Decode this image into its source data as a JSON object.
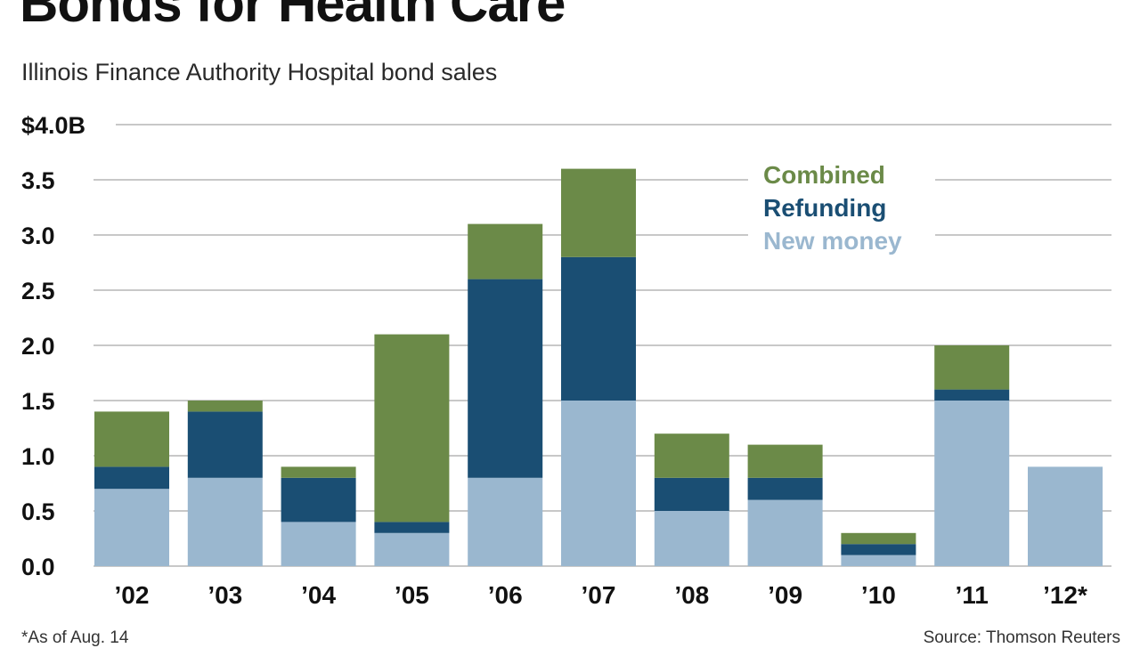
{
  "title": "Bonds for Health Care",
  "subtitle": "Illinois Finance Authority Hospital bond sales",
  "footnote": "*As of Aug. 14",
  "source": "Source: Thomson Reuters",
  "colors": {
    "combined": "#6b8a48",
    "refunding": "#1a4e73",
    "new_money": "#9ab7cf",
    "grid": "#c8c8c8"
  },
  "chart_data": {
    "type": "bar",
    "stacked": true,
    "title": "Bonds for Health Care",
    "subtitle": "Illinois Finance Authority Hospital bond sales",
    "xlabel": "",
    "ylabel": "",
    "ylim": [
      0,
      4.0
    ],
    "yticks": [
      0.0,
      0.5,
      1.0,
      1.5,
      2.0,
      2.5,
      3.0,
      3.5,
      4.0
    ],
    "ytick_labels": [
      "0.0",
      "0.5",
      "1.0",
      "1.5",
      "2.0",
      "2.5",
      "3.0",
      "3.5",
      "$4.0B"
    ],
    "grid": true,
    "legend_position": "top-right",
    "categories": [
      "'02",
      "'03",
      "'04",
      "'05",
      "'06",
      "'07",
      "'08",
      "'09",
      "'10",
      "'11",
      "'12*"
    ],
    "series": [
      {
        "name": "New money",
        "color": "#9ab7cf",
        "values": [
          0.7,
          0.8,
          0.4,
          0.3,
          0.8,
          1.5,
          0.5,
          0.6,
          0.1,
          1.5,
          0.9
        ]
      },
      {
        "name": "Refunding",
        "color": "#1a4e73",
        "values": [
          0.2,
          0.6,
          0.4,
          0.1,
          1.8,
          1.3,
          0.3,
          0.2,
          0.1,
          0.1,
          0.0
        ]
      },
      {
        "name": "Combined",
        "color": "#6b8a48",
        "values": [
          0.5,
          0.1,
          0.1,
          1.7,
          0.5,
          0.8,
          0.4,
          0.3,
          0.1,
          0.4,
          0.0
        ]
      }
    ],
    "legend_order": [
      "Combined",
      "Refunding",
      "New money"
    ]
  }
}
